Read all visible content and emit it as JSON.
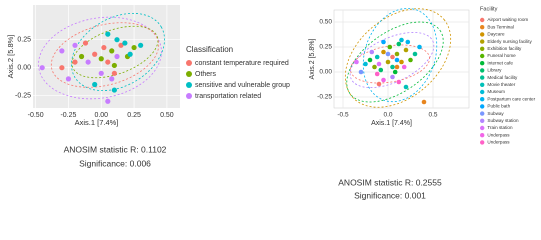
{
  "chart_data": [
    {
      "type": "scatter",
      "x_label": "Axis.1 [7.4%]",
      "y_label": "Axis.2 [5.8%]",
      "legend_title": "Classification",
      "grid": true,
      "xlim": [
        -0.52,
        0.6
      ],
      "ylim": [
        -0.36,
        0.56
      ],
      "xticks": [
        {
          "value": -0.5,
          "label": "-0.50"
        },
        {
          "value": -0.25,
          "label": "-0.25"
        },
        {
          "value": 0,
          "label": "0.00"
        },
        {
          "value": 0.25,
          "label": "0.25"
        },
        {
          "value": 0.5,
          "label": "0.50"
        }
      ],
      "yticks": [
        {
          "value": -0.25,
          "label": "-0.25"
        },
        {
          "value": 0,
          "label": "0.00"
        },
        {
          "value": 0.25,
          "label": "0.25"
        }
      ],
      "series": [
        {
          "name": "constant temperature required",
          "color": "#F8766D",
          "x": [
            -0.2,
            -0.05,
            0.02,
            0.1,
            -0.3,
            0.05,
            0.15,
            -0.12
          ],
          "y": [
            0.05,
            0.12,
            0.18,
            -0.05,
            0.0,
            0.05,
            0.2,
            0.22
          ]
        },
        {
          "name": "Others",
          "color": "#7CAE00",
          "x": [
            0.0,
            0.08,
            0.2,
            -0.15,
            0.1,
            0.25
          ],
          "y": [
            0.08,
            0.15,
            0.1,
            0.1,
            0.02,
            0.18
          ]
        },
        {
          "name": "sensitive and vulnerable group",
          "color": "#00BFC4",
          "x": [
            0.12,
            0.18,
            0.3,
            0.05,
            0.22,
            -0.05,
            0.1
          ],
          "y": [
            0.25,
            0.22,
            0.2,
            0.3,
            0.12,
            -0.15,
            -0.2
          ]
        },
        {
          "name": "transportation related",
          "color": "#C77CFF",
          "x": [
            -0.45,
            -0.3,
            -0.2,
            -0.1,
            0.0,
            0.08,
            0.05,
            -0.25,
            0.12
          ],
          "y": [
            0.0,
            0.15,
            0.2,
            0.05,
            -0.05,
            -0.1,
            -0.3,
            -0.1,
            0.1
          ]
        }
      ],
      "annotations": [
        "ANOSIM statistic R: 0.1102",
        "Significance: 0.006"
      ]
    },
    {
      "type": "scatter",
      "x_label": "Axis.1 [7.4%]",
      "y_label": "Axis.2 [5.8%]",
      "legend_title": "Facility",
      "grid": true,
      "xlim": [
        -0.6,
        0.9
      ],
      "ylim": [
        -0.36,
        0.62
      ],
      "xticks": [
        {
          "value": -0.5,
          "label": "-0.5"
        },
        {
          "value": 0,
          "label": "0.0"
        },
        0.5
      ],
      "yticks": [
        {
          "value": -0.25,
          "label": "-0.25"
        },
        {
          "value": 0,
          "label": "0.00"
        },
        0.25,
        {
          "value": 0.5,
          "label": "0.50"
        }
      ],
      "series": [
        {
          "name": "Airport waiting room",
          "color": "#F8766D",
          "x": [
            0.05,
            -0.1
          ],
          "y": [
            0.15,
            -0.12
          ]
        },
        {
          "name": "Bus Terminal",
          "color": "#E7851E",
          "x": [
            0.4,
            0.1
          ],
          "y": [
            -0.3,
            0.05
          ]
        },
        {
          "name": "Daycare",
          "color": "#D09400",
          "x": [
            -0.05,
            0.15
          ],
          "y": [
            0.2,
            0.1
          ]
        },
        {
          "name": "Elderly nursing facility",
          "color": "#B2A100",
          "x": [
            0.0,
            0.2
          ],
          "y": [
            0.1,
            0.22
          ]
        },
        {
          "name": "Exhibition facility",
          "color": "#8BAB00",
          "x": [
            -0.15,
            0.1
          ],
          "y": [
            0.05,
            0.18
          ]
        },
        {
          "name": "Funeral home",
          "color": "#55B400",
          "x": [
            0.02,
            0.25
          ],
          "y": [
            0.25,
            0.12
          ]
        },
        {
          "name": "Internet cafe",
          "color": "#00BA38",
          "x": [
            -0.2,
            0.08
          ],
          "y": [
            0.12,
            0.0
          ]
        },
        {
          "name": "Library",
          "color": "#00BE6C",
          "x": [
            0.12,
            -0.08
          ],
          "y": [
            0.28,
            0.02
          ]
        },
        {
          "name": "Medical facility",
          "color": "#00C094",
          "x": [
            0.3,
            0.05
          ],
          "y": [
            0.18,
            0.05
          ]
        },
        {
          "name": "Movie theater",
          "color": "#00C0B8",
          "x": [
            0.2,
            -0.12
          ],
          "y": [
            -0.15,
            0.15
          ]
        },
        {
          "name": "Museum",
          "color": "#00BCD8",
          "x": [
            0.15,
            -0.25
          ],
          "y": [
            0.32,
            0.08
          ]
        },
        {
          "name": "Postpartum care center",
          "color": "#00B4EF",
          "x": [
            0.22,
            0.35
          ],
          "y": [
            0.3,
            0.25
          ]
        },
        {
          "name": "Public bath",
          "color": "#00A7FF",
          "x": [
            -0.05,
            0.1
          ],
          "y": [
            0.3,
            0.12
          ]
        },
        {
          "name": "Subway",
          "color": "#7997FF",
          "x": [
            -0.3,
            0.0
          ],
          "y": [
            0.0,
            0.18
          ]
        },
        {
          "name": "Subway station",
          "color": "#B385FF",
          "x": [
            -0.18,
            0.05
          ],
          "y": [
            0.2,
            -0.05
          ]
        },
        {
          "name": "Train station",
          "color": "#DB72FB",
          "x": [
            -0.35,
            -0.1
          ],
          "y": [
            0.1,
            0.08
          ]
        },
        {
          "name": "Underpass",
          "color": "#F265E7",
          "x": [
            -0.05,
            0.18
          ],
          "y": [
            -0.08,
            0.05
          ]
        },
        {
          "name": "Underpass",
          "color": "#FF61C7",
          "x": [
            -0.12,
            0.12
          ],
          "y": [
            -0.02,
            -0.1
          ]
        }
      ],
      "annotations": [
        "ANOSIM statistic R: 0.2555",
        "Significance: 0.001"
      ]
    }
  ]
}
